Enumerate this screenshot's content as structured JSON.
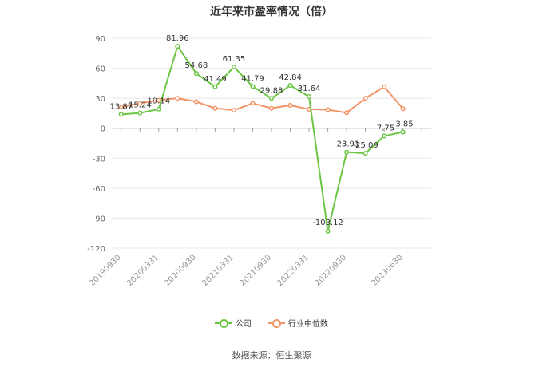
{
  "title": "近年来市盈率情况（倍）",
  "source": "数据来源：恒生聚源",
  "colors": {
    "company": "#6cc644",
    "industry": "#f29466",
    "grid": "#e8e8e8",
    "axis": "#999999"
  },
  "chart_data": {
    "type": "line",
    "title": "近年来市盈率情况（倍）",
    "ylim": [
      -120,
      90
    ],
    "yticks": [
      90,
      60,
      30,
      0,
      -30,
      -60,
      -90,
      -120
    ],
    "grid": true,
    "legend_position": "bottom-center",
    "x": [
      "20190930",
      "20191231",
      "20200331",
      "20200630",
      "20200930",
      "20201231",
      "20210331",
      "20210630",
      "20210930",
      "20211231",
      "20220331",
      "20220630",
      "20220930",
      "20221231",
      "20230331",
      "20230630",
      "20230930"
    ],
    "x_tick_labels": [
      "20190930",
      "20200331",
      "20200930",
      "20210331",
      "20210930",
      "20220331",
      "20220930",
      "20230630"
    ],
    "series": [
      {
        "name": "公司",
        "key": "company",
        "values": [
          13.87,
          15.24,
          19.14,
          81.96,
          54.68,
          41.49,
          61.35,
          41.79,
          29.88,
          42.84,
          31.64,
          -103.12,
          -23.91,
          -25.09,
          -7.75,
          -3.85,
          null
        ],
        "labels": [
          "13.87",
          "15.24",
          "19.14",
          "81.96",
          "54.68",
          "41.49",
          "61.35",
          "41.79",
          "29.88",
          "42.84",
          "31.64",
          "-103.12",
          "-23.91",
          "-25.09",
          "-7.75",
          "-3.85",
          null
        ]
      },
      {
        "name": "行业中位数",
        "key": "industry",
        "values": [
          21,
          25,
          28,
          30,
          26.5,
          20,
          18,
          25,
          20,
          23,
          19,
          18.5,
          15.5,
          30,
          41.5,
          19.5,
          null
        ],
        "labels": []
      }
    ]
  }
}
